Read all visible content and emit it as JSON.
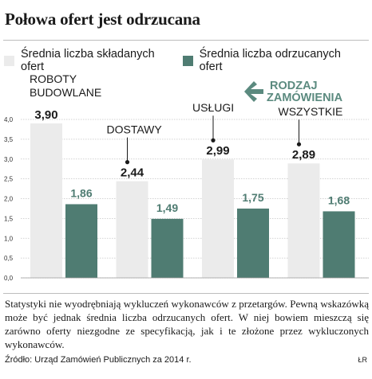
{
  "title": "Połowa ofert jest odrzucana",
  "legend": [
    {
      "label": "Średnia liczba składanych ofert",
      "color": "#ebebeb"
    },
    {
      "label": "Średnia liczba odrzucanych ofert",
      "color": "#4f7c72"
    }
  ],
  "arrow_label": [
    "RODZAJ",
    "ZAMÓWIENIA"
  ],
  "arrow_color": "#5b8a7f",
  "label_color_dark": "#1a1a1a",
  "chart_data": {
    "type": "bar",
    "categories": [
      [
        "ROBOTY",
        "BUDOWLANE"
      ],
      [
        "DOSTAWY"
      ],
      [
        "USŁUGI"
      ],
      [
        "WSZYSTKIE"
      ]
    ],
    "series": [
      {
        "name": "Średnia liczba składanych ofert",
        "values": [
          3.9,
          2.44,
          2.99,
          2.89
        ],
        "labels": [
          "3,90",
          "2,44",
          "2,99",
          "2,89"
        ],
        "color": "#ebebeb"
      },
      {
        "name": "Średnia liczba odrzucanych ofert",
        "values": [
          1.86,
          1.49,
          1.75,
          1.68
        ],
        "labels": [
          "1,86",
          "1,49",
          "1,75",
          "1,68"
        ],
        "color": "#4f7c72"
      }
    ],
    "ylim": [
      0,
      4.0
    ],
    "yticks": [
      "0,0",
      "0,5",
      "1,0",
      "1,5",
      "2,0",
      "2,5",
      "3,0",
      "3,5",
      "4,0"
    ],
    "grid": true
  },
  "note": "Statystyki nie wyodrębniają wykluczeń wykonawców z przetargów. Pewną wskazówką może być jednak średnia liczba odrzucanych ofert. W niej bowiem mieszczą się zarówno oferty niezgodne ze specyfikacją, jak i te złożone przez wykluczonych wykonawców.",
  "source": "Źródło: Urząd Zamówień Publicznych za 2014 r.",
  "credit": "ŁR"
}
